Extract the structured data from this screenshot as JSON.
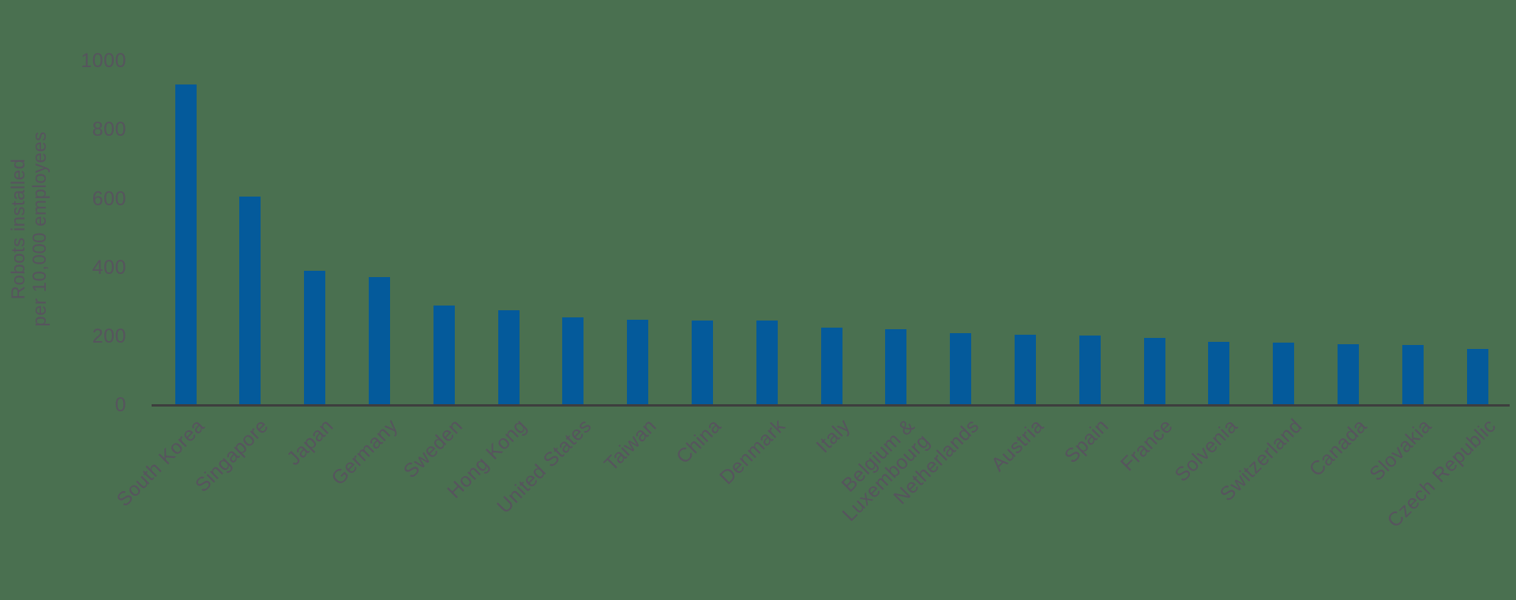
{
  "chart_data": {
    "type": "bar",
    "title": "",
    "ylabel_lines": [
      "Robots installed",
      "per 10,000 employees"
    ],
    "categories": [
      "South Korea",
      "Singapore",
      "Japan",
      "Germany",
      "Sweden",
      "Hong Kong",
      "United States",
      "Taiwan",
      "China",
      "Denmark",
      "Italy",
      "Belgium &\nLuxembourg",
      "Netherlands",
      "Austria",
      "Spain",
      "France",
      "Solvenia",
      "Switzerland",
      "Canada",
      "Slovakia",
      "Czech Republic"
    ],
    "values": [
      932,
      605,
      390,
      371,
      289,
      275,
      255,
      248,
      246,
      246,
      224,
      221,
      209,
      205,
      203,
      194,
      183,
      181,
      176,
      175,
      162
    ],
    "yticks": [
      0,
      200,
      400,
      600,
      800,
      1000
    ],
    "ylim": [
      0,
      1000
    ],
    "grid": false,
    "legend": false,
    "colors": {
      "bar": "#045A9B",
      "text": "#57545E",
      "axis": "#3E3E3E",
      "background": "#4A7050"
    }
  }
}
